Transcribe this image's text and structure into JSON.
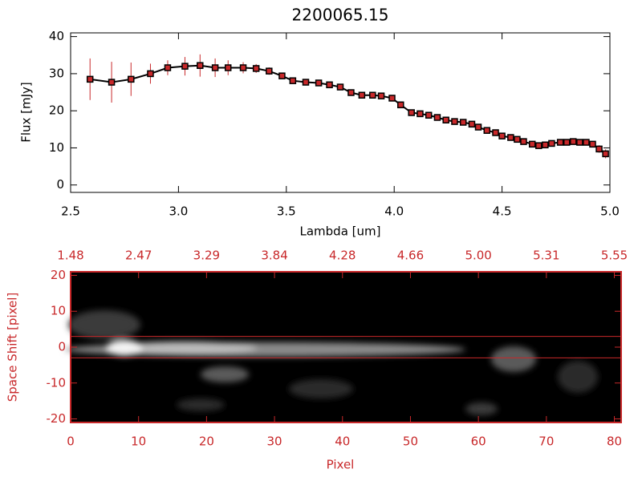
{
  "chart_data": [
    {
      "type": "line",
      "title": "2200065.15",
      "xlabel": "Lambda [um]",
      "ylabel": "Flux [mJy]",
      "color": "#000000",
      "marker_color": "#c8282a",
      "error_color": "#c8282a",
      "xlim": [
        2.5,
        5.0
      ],
      "ylim": [
        -2,
        41
      ],
      "xticks": [
        2.5,
        {
          "value": 3,
          "label": "3.0"
        },
        3.5,
        {
          "value": 4,
          "label": "4.0"
        },
        4.5,
        {
          "value": 5,
          "label": "5.0"
        }
      ],
      "yticks": [
        0,
        10,
        20,
        30,
        40
      ],
      "x": [
        2.59,
        2.69,
        2.78,
        2.87,
        2.95,
        3.03,
        3.1,
        3.17,
        3.23,
        3.3,
        3.36,
        3.42,
        3.48,
        3.53,
        3.59,
        3.65,
        3.7,
        3.75,
        3.8,
        3.85,
        3.9,
        3.94,
        3.99,
        4.03,
        4.08,
        4.12,
        4.16,
        4.2,
        4.24,
        4.28,
        4.32,
        4.36,
        4.39,
        4.43,
        4.47,
        4.5,
        4.54,
        4.57,
        4.6,
        4.64,
        4.67,
        4.7,
        4.73,
        4.77,
        4.8,
        4.83,
        4.86,
        4.89,
        4.92,
        4.95,
        4.98
      ],
      "values": [
        28.5,
        27.7,
        28.5,
        30.0,
        31.6,
        32.0,
        32.2,
        31.6,
        31.6,
        31.6,
        31.4,
        30.7,
        29.4,
        28.1,
        27.7,
        27.5,
        27.0,
        26.4,
        24.9,
        24.2,
        24.2,
        24.0,
        23.4,
        21.6,
        19.5,
        19.2,
        18.8,
        18.2,
        17.5,
        17.1,
        16.9,
        16.4,
        15.6,
        14.7,
        14.1,
        13.2,
        12.8,
        12.3,
        11.7,
        11.0,
        10.6,
        10.8,
        11.2,
        11.5,
        11.5,
        11.7,
        11.5,
        11.5,
        11.0,
        9.7,
        8.4
      ],
      "errors": [
        5.6,
        5.5,
        4.5,
        2.7,
        2.0,
        2.5,
        3.0,
        2.5,
        2.0,
        1.5,
        1.2,
        1.0,
        0.8,
        0.8,
        0.8,
        0.8,
        0.8,
        0.8,
        0.8,
        0.8,
        0.8,
        0.8,
        0.8,
        0.8,
        0.8,
        0.8,
        0.8,
        0.8,
        0.8,
        0.8,
        0.8,
        0.8,
        0.8,
        0.8,
        0.8,
        0.8,
        0.8,
        0.8,
        0.8,
        0.8,
        0.8,
        0.8,
        0.8,
        0.8,
        0.8,
        0.8,
        0.8,
        0.8,
        0.8,
        1.0,
        1.2
      ]
    },
    {
      "type": "image",
      "xlabel": "Pixel",
      "ylabel": "Space Shift [pixel]",
      "color": "#c8282a",
      "xlim": [
        0,
        81
      ],
      "ylim": [
        -21,
        21
      ],
      "xticks": [
        0,
        10,
        20,
        30,
        40,
        50,
        60,
        70,
        80
      ],
      "x2ticks": [
        {
          "value": 0,
          "label": "1.48"
        },
        {
          "value": 10,
          "label": "2.47"
        },
        {
          "value": 20,
          "label": "3.29"
        },
        {
          "value": 30,
          "label": "3.84"
        },
        {
          "value": 40,
          "label": "4.28"
        },
        {
          "value": 50,
          "label": "4.66"
        },
        {
          "value": 60,
          "label": "5.00"
        },
        {
          "value": 70,
          "label": "5.31"
        },
        {
          "value": 80,
          "label": "5.55"
        }
      ],
      "yticks": [
        -20,
        -10,
        0,
        10,
        20
      ],
      "aperture": [
        3,
        -3
      ]
    }
  ]
}
